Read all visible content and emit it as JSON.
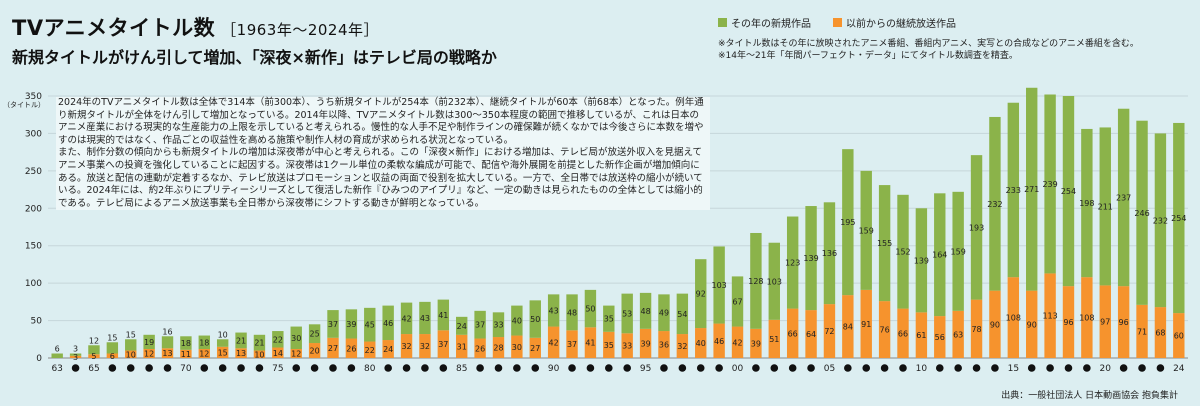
{
  "header": {
    "title": "TVアニメタイトル数",
    "title_years": "［1963年～2024年］",
    "subtitle": "新規タイトルがけん引して増加、「深夜×新作」はテレビ局の戦略か"
  },
  "notes": [
    "※タイトル数はその年に放映されたアニメ番組、番組内アニメ、実写との合成などのアニメ番組を含む。",
    "※14年～21年「年間パーフェクト・データ」にてタイトル数調査を精査。"
  ],
  "description": [
    "2024年のTVアニメタイトル数は全体で314本（前300本）、うち新規タイトルが254本（前232本）、継続タイトルが60本（前68本）となった。例年通り新規タイトルが全体をけん引して増加となっている。2014年以降、TVアニメタイトル数は300～350本程度の範囲で推移しているが、これは日本のアニメ産業における現実的な生産能力の上限を示していると考えられる。慢性的な人手不足や制作ラインの確保難が続くなかでは今後さらに本数を増やすのは現実的ではなく、作品ごとの収益性を高める施策や制作人材の育成が求められる状況となっている。",
    "また、制作分数の傾向からも新規タイトルの増加は深夜帯が中心と考えられる。この「深夜×新作」における増加は、テレビ局が放送外収入を見据えてアニメ事業への投資を強化していることに起因する。深夜帯は1クール単位の柔軟な編成が可能で、配信や海外展開を前提とした新作企画が増加傾向にある。放送と配信の連動が定着するなか、テレビ放送はプロモーションと収益の両面で役割を拡大している。一方で、全日帯では放送枠の縮小が続いている。2024年には、約2年ぶりにプリティーシリーズとして復活した新作『ひみつのアイプリ』など、一定の動きは見られたものの全体としては縮小的である。テレビ局によるアニメ放送事業も全日帯から深夜帯にシフトする動きが鮮明となっている。"
  ],
  "source": "出典：一般社団法人 日本動画協会 抱負集計",
  "chart_data": {
    "type": "bar",
    "stacked": true,
    "x": [
      1963,
      1964,
      1965,
      1966,
      1967,
      1968,
      1969,
      1970,
      1971,
      1972,
      1973,
      1974,
      1975,
      1976,
      1977,
      1978,
      1979,
      1980,
      1981,
      1982,
      1983,
      1984,
      1985,
      1986,
      1987,
      1988,
      1989,
      1990,
      1991,
      1992,
      1993,
      1994,
      1995,
      1996,
      1997,
      1998,
      1999,
      2000,
      2001,
      2002,
      2003,
      2004,
      2005,
      2006,
      2007,
      2008,
      2009,
      2010,
      2011,
      2012,
      2013,
      2014,
      2015,
      2016,
      2017,
      2018,
      2019,
      2020,
      2021,
      2022,
      2023,
      2024
    ],
    "x_tick_labels": {
      "1963": "63",
      "1965": "65",
      "1970": "70",
      "1975": "75",
      "1980": "80",
      "1985": "85",
      "1990": "90",
      "1995": "95",
      "2000": "00",
      "2005": "05",
      "2010": "10",
      "2015": "15",
      "2020": "20",
      "2024": "24"
    },
    "series": [
      {
        "name": "以前からの継続放送作品",
        "color": "#f6932d",
        "values": [
          0,
          3,
          5,
          6,
          10,
          12,
          13,
          11,
          12,
          15,
          13,
          10,
          14,
          12,
          20,
          27,
          26,
          22,
          24,
          32,
          32,
          37,
          31,
          26,
          28,
          30,
          27,
          42,
          37,
          41,
          35,
          33,
          39,
          36,
          32,
          40,
          46,
          42,
          39,
          51,
          66,
          64,
          72,
          84,
          91,
          76,
          66,
          61,
          56,
          63,
          78,
          90,
          108,
          90,
          113,
          96,
          108,
          97,
          96,
          71,
          68,
          60
        ]
      },
      {
        "name": "その年の新規作品",
        "color": "#8bb34a",
        "values": [
          6,
          3,
          12,
          15,
          15,
          19,
          16,
          18,
          18,
          10,
          21,
          21,
          22,
          30,
          25,
          37,
          39,
          45,
          46,
          42,
          43,
          41,
          24,
          37,
          33,
          40,
          50,
          43,
          48,
          50,
          35,
          53,
          48,
          49,
          54,
          92,
          103,
          67,
          128,
          103,
          123,
          139,
          136,
          195,
          159,
          155,
          152,
          139,
          164,
          159,
          193,
          232,
          233,
          271,
          239,
          254,
          198,
          211,
          237,
          246,
          232,
          254
        ]
      }
    ],
    "ylabel": "（タイトル）",
    "ylim": [
      0,
      350
    ],
    "yticks": [
      0,
      50,
      100,
      150,
      200,
      250,
      300,
      350
    ],
    "grid": true,
    "legend_position": "top-right"
  }
}
